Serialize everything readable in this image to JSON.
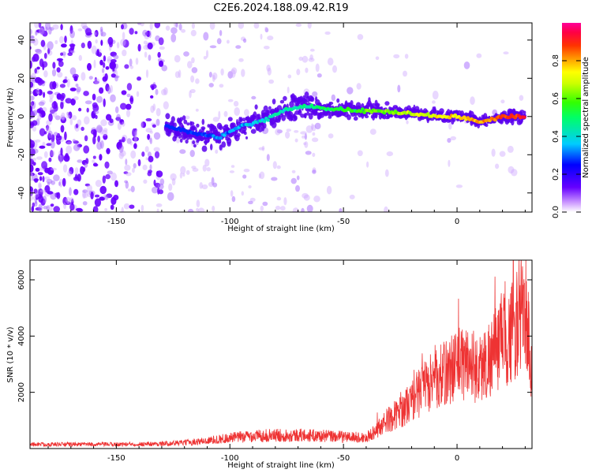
{
  "title": "C2E6.2024.188.09.42.R19",
  "chart_data": [
    {
      "type": "heatmap",
      "xlabel": "Height of straight line (km)",
      "ylabel": "Frequency (Hz)",
      "xlim": [
        -188,
        33
      ],
      "ylim": [
        -50,
        49
      ],
      "xticks": [
        -150,
        -100,
        -50,
        0
      ],
      "yticks": [
        -40,
        -20,
        0,
        20,
        40
      ],
      "colorbar": {
        "label": "Normalized spectral amplitude",
        "range": [
          0,
          1
        ],
        "ticks": [
          0.0,
          0.2,
          0.4,
          0.6,
          0.8
        ],
        "colormap": "rainbow (white → purple → blue → cyan → green → yellow → orange → red → magenta)"
      },
      "trace": {
        "description": "dominant frequency ridge vs height",
        "x": [
          -128,
          -115,
          -105,
          -95,
          -85,
          -75,
          -65,
          -55,
          -45,
          -35,
          -25,
          -15,
          -5,
          0,
          5,
          10,
          20,
          30
        ],
        "y": [
          -5,
          -9,
          -11,
          -5,
          -2,
          4,
          5,
          4,
          3,
          3,
          2,
          1,
          0,
          0,
          -1,
          -3,
          0,
          0
        ]
      }
    },
    {
      "type": "line",
      "xlabel": "Height of straight line (km)",
      "ylabel": "SNR (10 * v/v)",
      "xlim": [
        -188,
        33
      ],
      "ylim": [
        0,
        6700
      ],
      "xticks": [
        -150,
        -100,
        -50,
        0
      ],
      "yticks": [
        2000,
        4000,
        6000
      ],
      "color": "#ee3333",
      "x": [
        -188,
        -175,
        -160,
        -150,
        -140,
        -130,
        -120,
        -110,
        -100,
        -90,
        -80,
        -70,
        -60,
        -50,
        -45,
        -40,
        -35,
        -30,
        -25,
        -20,
        -15,
        -10,
        -5,
        0,
        5,
        10,
        15,
        20,
        25,
        30,
        33
      ],
      "y": [
        150,
        150,
        150,
        150,
        160,
        170,
        210,
        280,
        380,
        450,
        470,
        480,
        450,
        420,
        400,
        380,
        700,
        1050,
        1300,
        1700,
        2150,
        2400,
        2700,
        3000,
        3100,
        2800,
        3300,
        3800,
        4200,
        5200,
        2600
      ]
    }
  ]
}
